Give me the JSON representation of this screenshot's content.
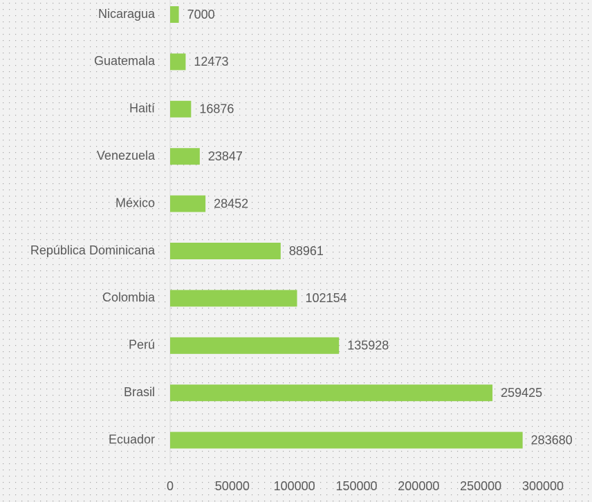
{
  "chart_data": {
    "type": "bar",
    "orientation": "horizontal",
    "categories": [
      "Nicaragua",
      "Guatemala",
      "Haití",
      "Venezuela",
      "México",
      "República Dominicana",
      "Colombia",
      "Perú",
      "Brasil",
      "Ecuador"
    ],
    "values": [
      7000,
      12473,
      16876,
      23847,
      28452,
      88961,
      102154,
      135928,
      259425,
      283680
    ],
    "color": "#92d050",
    "xlim": [
      0,
      300000
    ],
    "xticks": [
      0,
      50000,
      100000,
      150000,
      200000,
      250000,
      300000
    ],
    "grid": false,
    "data_labels": true
  }
}
